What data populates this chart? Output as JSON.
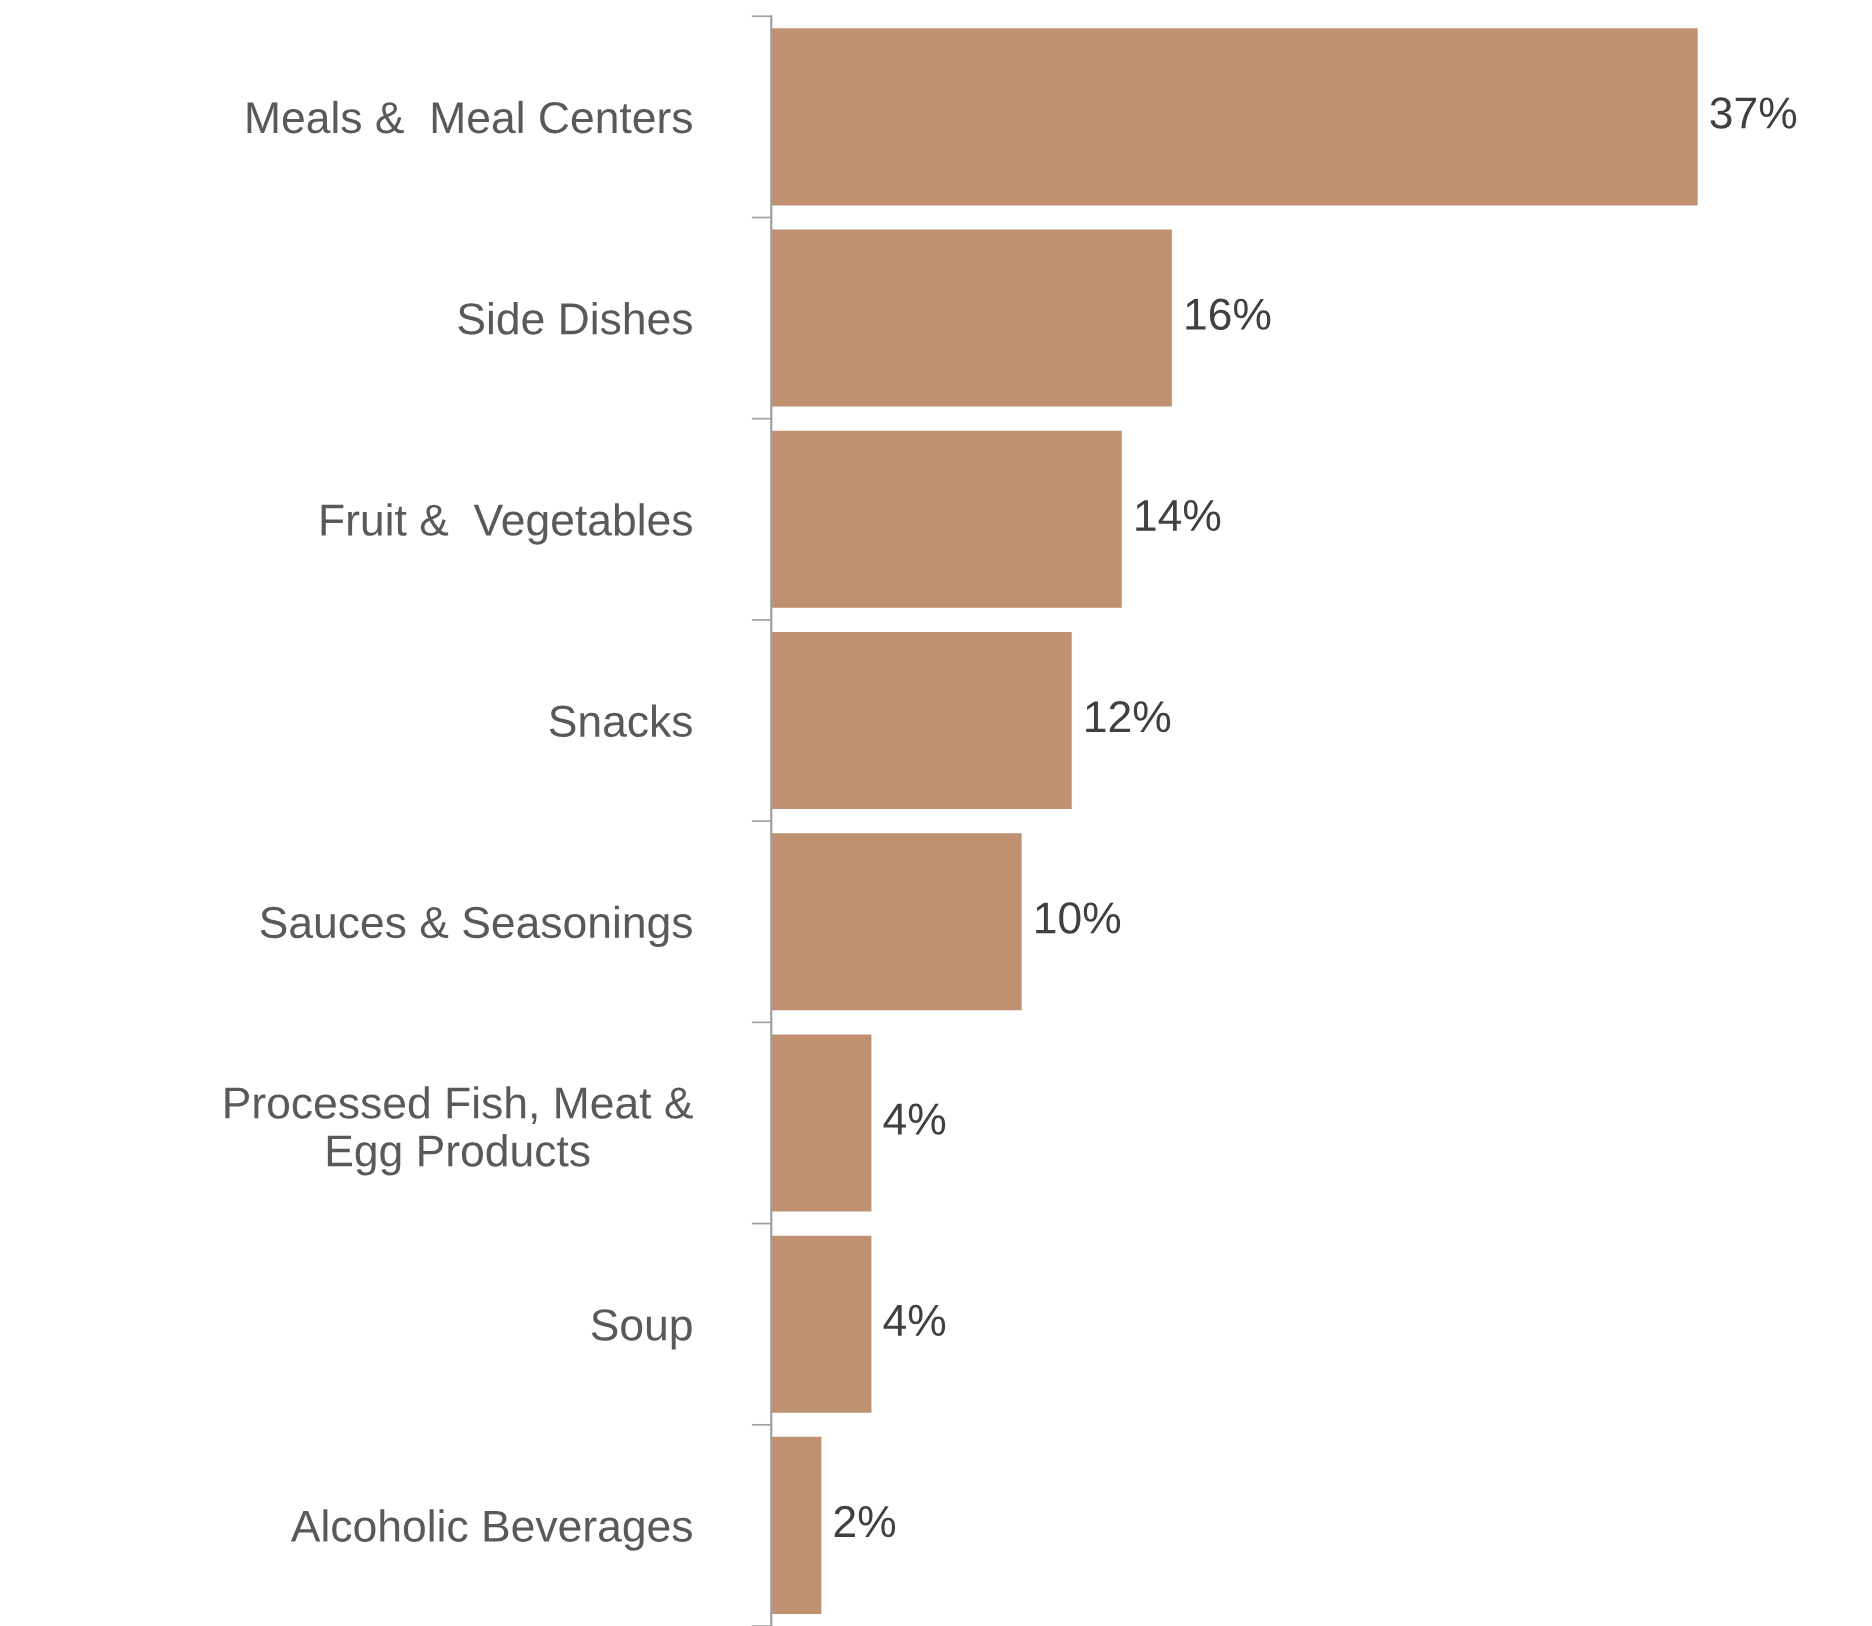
{
  "chart_data": {
    "type": "bar",
    "orientation": "horizontal",
    "categories": [
      "Meals &  Meal Centers",
      "Side Dishes",
      "Fruit &  Vegetables",
      "Snacks",
      "Sauces & Seasonings",
      "Processed Fish, Meat &\nEgg Products",
      "Soup",
      "Alcoholic Beverages"
    ],
    "values": [
      37,
      16,
      14,
      12,
      10,
      4,
      4,
      2
    ],
    "value_labels": [
      "37%",
      "16%",
      "14%",
      "12%",
      "10%",
      "4%",
      "4%",
      "2%"
    ],
    "color": "#bf9170",
    "grid": false,
    "legend": false
  }
}
